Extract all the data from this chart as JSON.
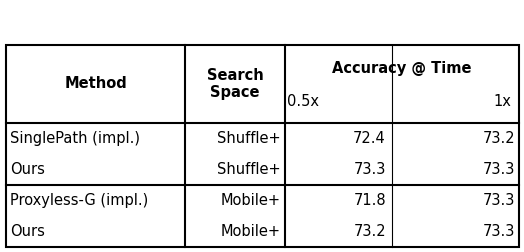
{
  "header_row1_col0": "Method",
  "header_row1_col1": "Search\nSpace",
  "header_row1_col23": "Accuracy @ Time",
  "header_row2_col2": "0.5x",
  "header_row2_col3": "1x",
  "rows": [
    [
      "SinglePath (impl.)",
      "Shuffle+",
      "72.4",
      "73.2"
    ],
    [
      "Ours",
      "Shuffle+",
      "73.3",
      "73.3"
    ],
    [
      "Proxyless-G (impl.)",
      "Mobile+",
      "71.8",
      "73.3"
    ],
    [
      "Ours",
      "Mobile+",
      "73.2",
      "73.3"
    ]
  ],
  "background_color": "#ffffff",
  "font_size": 10.5,
  "header_font_size": 10.5
}
